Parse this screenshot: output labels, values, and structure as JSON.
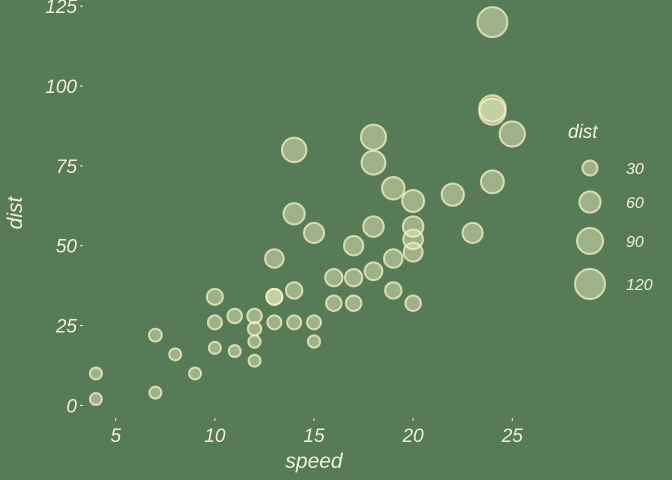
{
  "colors": {
    "background": "#577b56",
    "point_fill": "#f6f4c6",
    "point_stroke": "#f6f4c6",
    "text": "#f3f0d8"
  },
  "chart_data": {
    "type": "scatter",
    "xlabel": "speed",
    "ylabel": "dist",
    "xlim": [
      3.5,
      26.5
    ],
    "ylim": [
      -3,
      126
    ],
    "x_ticks": [
      5,
      10,
      15,
      20,
      25
    ],
    "y_ticks": [
      0,
      25,
      50,
      75,
      100,
      125
    ],
    "x_tick_labels": [
      "5",
      "10",
      "15",
      "20",
      "25"
    ],
    "y_tick_labels": [
      "0",
      "25",
      "50",
      "75",
      "100",
      "125"
    ],
    "grid": false,
    "legend_placement": "right",
    "size_legend": {
      "title": "dist",
      "values": [
        30,
        60,
        90,
        120
      ],
      "labels": [
        "30",
        "60",
        "90",
        "120"
      ]
    },
    "points": {
      "x": [
        4,
        4,
        7,
        7,
        8,
        9,
        10,
        10,
        10,
        11,
        11,
        12,
        12,
        12,
        12,
        13,
        13,
        13,
        13,
        14,
        14,
        14,
        14,
        15,
        15,
        15,
        16,
        16,
        17,
        17,
        17,
        18,
        18,
        18,
        18,
        19,
        19,
        19,
        20,
        20,
        20,
        20,
        20,
        22,
        23,
        24,
        24,
        24,
        24,
        25
      ],
      "y": [
        2,
        10,
        4,
        22,
        16,
        10,
        18,
        26,
        34,
        17,
        28,
        14,
        20,
        24,
        28,
        26,
        34,
        34,
        46,
        26,
        36,
        60,
        80,
        20,
        26,
        54,
        32,
        40,
        32,
        40,
        50,
        42,
        56,
        76,
        84,
        36,
        46,
        68,
        32,
        48,
        52,
        56,
        64,
        66,
        54,
        70,
        92,
        93,
        120,
        85
      ]
    }
  }
}
